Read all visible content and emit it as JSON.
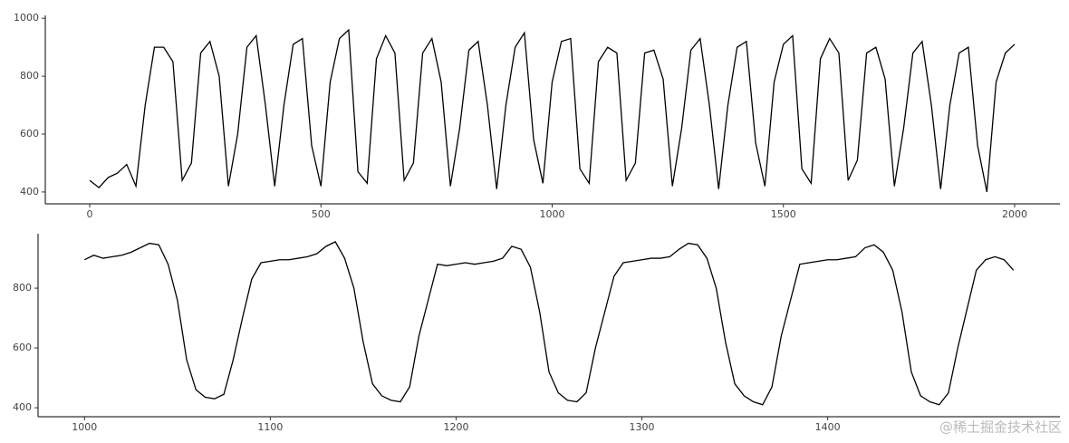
{
  "chart_data": [
    {
      "type": "line",
      "color": "#000000",
      "x": [
        0,
        20,
        40,
        60,
        80,
        100,
        120,
        140,
        160,
        180,
        200,
        220,
        240,
        260,
        280,
        300,
        320,
        340,
        360,
        380,
        400,
        420,
        440,
        460,
        480,
        500,
        520,
        540,
        560,
        580,
        600,
        620,
        640,
        660,
        680,
        700,
        720,
        740,
        760,
        780,
        800,
        820,
        840,
        860,
        880,
        900,
        920,
        940,
        960,
        980,
        1000,
        1020,
        1040,
        1060,
        1080,
        1100,
        1120,
        1140,
        1160,
        1180,
        1200,
        1220,
        1240,
        1260,
        1280,
        1300,
        1320,
        1340,
        1360,
        1380,
        1400,
        1420,
        1440,
        1460,
        1480,
        1500,
        1520,
        1540,
        1560,
        1580,
        1600,
        1620,
        1640,
        1660,
        1680,
        1700,
        1720,
        1740,
        1760,
        1780,
        1800,
        1820,
        1840,
        1860,
        1880,
        1900,
        1920,
        1940,
        1960,
        1980,
        2000
      ],
      "values": [
        440,
        415,
        450,
        465,
        495,
        420,
        700,
        900,
        900,
        850,
        440,
        500,
        880,
        920,
        800,
        420,
        600,
        900,
        940,
        700,
        420,
        700,
        910,
        930,
        560,
        420,
        780,
        930,
        960,
        470,
        430,
        860,
        940,
        880,
        440,
        500,
        880,
        930,
        780,
        420,
        620,
        890,
        920,
        700,
        410,
        700,
        900,
        950,
        580,
        430,
        780,
        920,
        930,
        480,
        430,
        850,
        900,
        880,
        440,
        500,
        880,
        890,
        790,
        420,
        620,
        890,
        930,
        700,
        410,
        700,
        900,
        920,
        570,
        420,
        780,
        910,
        940,
        480,
        430,
        860,
        930,
        880,
        440,
        510,
        880,
        900,
        790,
        420,
        620,
        880,
        920,
        700,
        410,
        700,
        880,
        900,
        560,
        400,
        780,
        880,
        910
      ],
      "xlim": [
        -96,
        2098
      ],
      "ylim": [
        359,
        1010
      ],
      "xticks": [
        0,
        500,
        1000,
        1500,
        2000
      ],
      "yticks": [
        400,
        600,
        800,
        1000
      ]
    },
    {
      "type": "line",
      "color": "#000000",
      "x": [
        1000,
        1005,
        1010,
        1015,
        1020,
        1025,
        1030,
        1035,
        1040,
        1045,
        1050,
        1055,
        1060,
        1065,
        1070,
        1075,
        1080,
        1085,
        1090,
        1095,
        1100,
        1105,
        1110,
        1115,
        1120,
        1125,
        1130,
        1135,
        1140,
        1145,
        1150,
        1155,
        1160,
        1165,
        1170,
        1175,
        1180,
        1185,
        1190,
        1195,
        1200,
        1205,
        1210,
        1215,
        1220,
        1225,
        1230,
        1235,
        1240,
        1245,
        1250,
        1255,
        1260,
        1265,
        1270,
        1275,
        1280,
        1285,
        1290,
        1295,
        1300,
        1305,
        1310,
        1315,
        1320,
        1325,
        1330,
        1335,
        1340,
        1345,
        1350,
        1355,
        1360,
        1365,
        1370,
        1375,
        1380,
        1385,
        1390,
        1395,
        1400,
        1405,
        1410,
        1415,
        1420,
        1425,
        1430,
        1435,
        1440,
        1445,
        1450,
        1455,
        1460,
        1465,
        1470,
        1475,
        1480,
        1485,
        1490,
        1495,
        1500
      ],
      "values": [
        895,
        910,
        900,
        905,
        910,
        920,
        935,
        950,
        945,
        880,
        760,
        560,
        460,
        435,
        430,
        445,
        560,
        700,
        830,
        885,
        890,
        895,
        895,
        900,
        905,
        915,
        940,
        955,
        900,
        800,
        620,
        480,
        440,
        425,
        420,
        470,
        640,
        760,
        880,
        875,
        880,
        885,
        880,
        885,
        890,
        900,
        940,
        930,
        870,
        720,
        520,
        450,
        425,
        420,
        450,
        600,
        720,
        840,
        885,
        890,
        895,
        900,
        900,
        905,
        930,
        950,
        945,
        900,
        800,
        620,
        480,
        440,
        420,
        410,
        470,
        640,
        760,
        880,
        885,
        890,
        895,
        895,
        900,
        905,
        935,
        945,
        920,
        860,
        720,
        520,
        440,
        420,
        410,
        450,
        600,
        730,
        860,
        895,
        905,
        895,
        860
      ],
      "xlim": [
        975,
        1525
      ],
      "ylim": [
        370,
        982
      ],
      "xticks": [
        1000,
        1100,
        1200,
        1300,
        1400
      ],
      "yticks": [
        400,
        600,
        800
      ]
    }
  ],
  "watermark": "@稀土掘金技术社区"
}
